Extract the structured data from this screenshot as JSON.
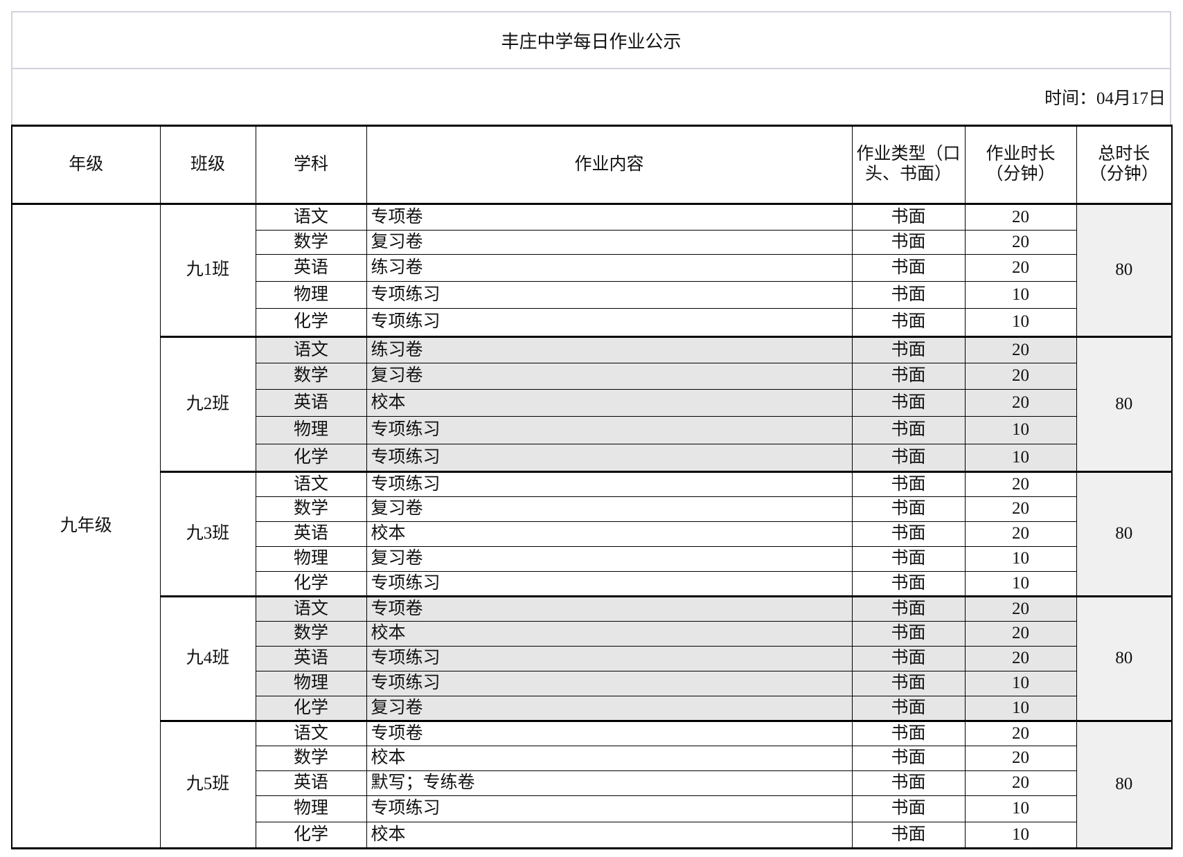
{
  "title": "丰庄中学每日作业公示",
  "date": {
    "label": "时间：",
    "value": "04月17日"
  },
  "headers": [
    "年级",
    "班级",
    "学科",
    "作业内容",
    "作业类型（口头、书面）",
    "作业时长（分钟）",
    "总时长（分钟）"
  ],
  "grade": "九年级",
  "classes": [
    {
      "name": "九1班",
      "total": "80",
      "shaded": false,
      "rows": [
        {
          "subject": "语文",
          "content": "专项卷",
          "type": "书面",
          "minutes": "20"
        },
        {
          "subject": "数学",
          "content": "复习卷",
          "type": "书面",
          "minutes": "20"
        },
        {
          "subject": "英语",
          "content": "练习卷",
          "type": "书面",
          "minutes": "20"
        },
        {
          "subject": "物理",
          "content": "专项练习",
          "type": "书面",
          "minutes": "10"
        },
        {
          "subject": "化学",
          "content": "专项练习",
          "type": "书面",
          "minutes": "10"
        }
      ]
    },
    {
      "name": "九2班",
      "total": "80",
      "shaded": true,
      "rows": [
        {
          "subject": "语文",
          "content": "练习卷",
          "type": "书面",
          "minutes": "20"
        },
        {
          "subject": "数学",
          "content": "复习卷",
          "type": "书面",
          "minutes": "20"
        },
        {
          "subject": "英语",
          "content": "校本",
          "type": "书面",
          "minutes": "20"
        },
        {
          "subject": "物理",
          "content": "专项练习",
          "type": "书面",
          "minutes": "10"
        },
        {
          "subject": "化学",
          "content": "专项练习",
          "type": "书面",
          "minutes": "10"
        }
      ]
    },
    {
      "name": "九3班",
      "total": "80",
      "shaded": false,
      "rows": [
        {
          "subject": "语文",
          "content": "专项练习",
          "type": "书面",
          "minutes": "20"
        },
        {
          "subject": "数学",
          "content": "复习卷",
          "type": "书面",
          "minutes": "20"
        },
        {
          "subject": "英语",
          "content": "校本",
          "type": "书面",
          "minutes": "20"
        },
        {
          "subject": "物理",
          "content": "复习卷",
          "type": "书面",
          "minutes": "10"
        },
        {
          "subject": "化学",
          "content": "专项练习",
          "type": "书面",
          "minutes": "10"
        }
      ]
    },
    {
      "name": "九4班",
      "total": "80",
      "shaded": true,
      "rows": [
        {
          "subject": "语文",
          "content": "专项卷",
          "type": "书面",
          "minutes": "20"
        },
        {
          "subject": "数学",
          "content": "校本",
          "type": "书面",
          "minutes": "20"
        },
        {
          "subject": "英语",
          "content": "专项练习",
          "type": "书面",
          "minutes": "20"
        },
        {
          "subject": "物理",
          "content": "专项练习",
          "type": "书面",
          "minutes": "10"
        },
        {
          "subject": "化学",
          "content": "复习卷",
          "type": "书面",
          "minutes": "10"
        }
      ]
    },
    {
      "name": "九5班",
      "total": "80",
      "shaded": false,
      "rows": [
        {
          "subject": "语文",
          "content": "专项卷",
          "type": "书面",
          "minutes": "20"
        },
        {
          "subject": "数学",
          "content": "校本",
          "type": "书面",
          "minutes": "20"
        },
        {
          "subject": "英语",
          "content": "默写；专练卷",
          "type": "书面",
          "minutes": "20"
        },
        {
          "subject": "物理",
          "content": "专项练习",
          "type": "书面",
          "minutes": "10"
        },
        {
          "subject": "化学",
          "content": "校本",
          "type": "书面",
          "minutes": "10"
        }
      ]
    }
  ]
}
